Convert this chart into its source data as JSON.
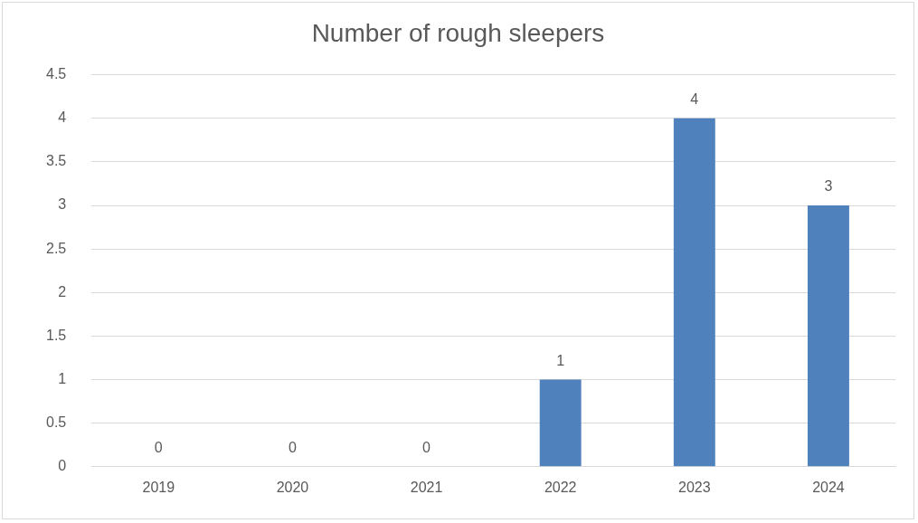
{
  "chart_data": {
    "type": "bar",
    "title": "Number of rough sleepers",
    "categories": [
      "2019",
      "2020",
      "2021",
      "2022",
      "2023",
      "2024"
    ],
    "values": [
      0,
      0,
      0,
      1,
      4,
      3
    ],
    "color": "#4f81bd",
    "ylim": [
      0,
      4.5
    ],
    "yticks": [
      0,
      0.5,
      1,
      1.5,
      2,
      2.5,
      3,
      3.5,
      4,
      4.5
    ],
    "grid": "y",
    "data_labels": true
  }
}
